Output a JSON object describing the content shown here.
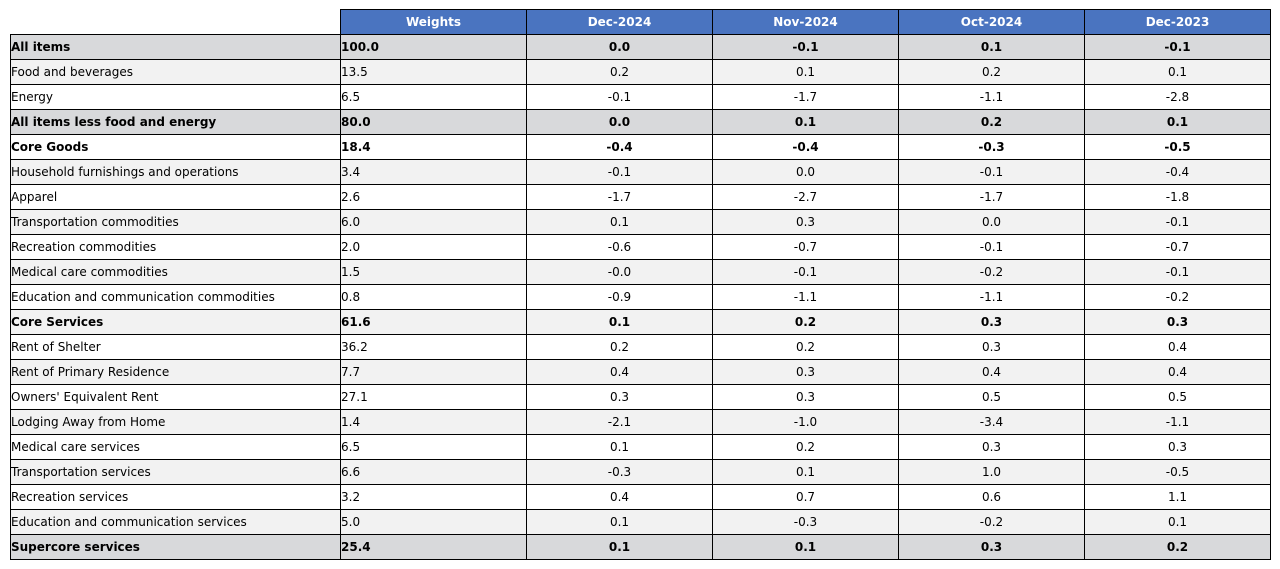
{
  "chart_data": {
    "type": "table",
    "columns": [
      "Weights",
      "Dec-2024",
      "Nov-2024",
      "Oct-2024",
      "Dec-2023"
    ],
    "rows": [
      {
        "label": "All items",
        "bold": true,
        "indent": false,
        "shade": "dark",
        "values": [
          "100.0",
          "0.0",
          "-0.1",
          "0.1",
          "-0.1"
        ]
      },
      {
        "label": "Food and beverages",
        "bold": false,
        "indent": false,
        "shade": "light",
        "values": [
          "13.5",
          "0.2",
          "0.1",
          "0.2",
          "0.1"
        ]
      },
      {
        "label": "Energy",
        "bold": false,
        "indent": false,
        "shade": "white",
        "values": [
          "6.5",
          "-0.1",
          "-1.7",
          "-1.1",
          "-2.8"
        ]
      },
      {
        "label": "All items less food and energy",
        "bold": true,
        "indent": false,
        "shade": "dark",
        "values": [
          "80.0",
          "0.0",
          "0.1",
          "0.2",
          "0.1"
        ]
      },
      {
        "label": "Core Goods",
        "bold": true,
        "indent": false,
        "shade": "white",
        "values": [
          "18.4",
          "-0.4",
          "-0.4",
          "-0.3",
          "-0.5"
        ]
      },
      {
        "label": "Household furnishings and operations",
        "bold": false,
        "indent": false,
        "shade": "light",
        "values": [
          "3.4",
          "-0.1",
          "0.0",
          "-0.1",
          "-0.4"
        ]
      },
      {
        "label": "Apparel",
        "bold": false,
        "indent": false,
        "shade": "white",
        "values": [
          "2.6",
          "-1.7",
          "-2.7",
          "-1.7",
          "-1.8"
        ]
      },
      {
        "label": "Transportation commodities",
        "bold": false,
        "indent": false,
        "shade": "light",
        "values": [
          "6.0",
          "0.1",
          "0.3",
          "0.0",
          "-0.1"
        ]
      },
      {
        "label": "Recreation commodities",
        "bold": false,
        "indent": false,
        "shade": "white",
        "values": [
          "2.0",
          "-0.6",
          "-0.7",
          "-0.1",
          "-0.7"
        ]
      },
      {
        "label": "Medical care commodities",
        "bold": false,
        "indent": false,
        "shade": "light",
        "values": [
          "1.5",
          "-0.0",
          "-0.1",
          "-0.2",
          "-0.1"
        ]
      },
      {
        "label": "Education and communication commodities",
        "bold": false,
        "indent": false,
        "shade": "white",
        "values": [
          "0.8",
          "-0.9",
          "-1.1",
          "-1.1",
          "-0.2"
        ]
      },
      {
        "label": "Core Services",
        "bold": true,
        "indent": false,
        "shade": "light",
        "values": [
          "61.6",
          "0.1",
          "0.2",
          "0.3",
          "0.3"
        ]
      },
      {
        "label": "Rent of Shelter",
        "bold": false,
        "indent": false,
        "shade": "white",
        "values": [
          "36.2",
          "0.2",
          "0.2",
          "0.3",
          "0.4"
        ]
      },
      {
        "label": "Rent of Primary Residence",
        "bold": false,
        "indent": true,
        "shade": "light",
        "values": [
          "7.7",
          "0.4",
          "0.3",
          "0.4",
          "0.4"
        ]
      },
      {
        "label": "Owners' Equivalent Rent",
        "bold": false,
        "indent": true,
        "shade": "white",
        "values": [
          "27.1",
          "0.3",
          "0.3",
          "0.5",
          "0.5"
        ]
      },
      {
        "label": "Lodging Away from Home",
        "bold": false,
        "indent": true,
        "shade": "light",
        "values": [
          "1.4",
          "-2.1",
          "-1.0",
          "-3.4",
          "-1.1"
        ]
      },
      {
        "label": "Medical care services",
        "bold": false,
        "indent": false,
        "shade": "white",
        "values": [
          "6.5",
          "0.1",
          "0.2",
          "0.3",
          "0.3"
        ]
      },
      {
        "label": "Transportation services",
        "bold": false,
        "indent": false,
        "shade": "light",
        "values": [
          "6.6",
          "-0.3",
          "0.1",
          "1.0",
          "-0.5"
        ]
      },
      {
        "label": "Recreation services",
        "bold": false,
        "indent": false,
        "shade": "white",
        "values": [
          "3.2",
          "0.4",
          "0.7",
          "0.6",
          "1.1"
        ]
      },
      {
        "label": "Education and communication services",
        "bold": false,
        "indent": false,
        "shade": "light",
        "values": [
          "5.0",
          "0.1",
          "-0.3",
          "-0.2",
          "0.1"
        ]
      },
      {
        "label": "Supercore services",
        "bold": true,
        "indent": false,
        "shade": "dark",
        "values": [
          "25.4",
          "0.1",
          "0.1",
          "0.3",
          "0.2"
        ]
      }
    ]
  },
  "colors": {
    "header_background": "#4a74c0",
    "header_text": "#ffffff",
    "shade_dark": "#d8d9db",
    "shade_light": "#f2f2f2",
    "shade_white": "#ffffff"
  }
}
